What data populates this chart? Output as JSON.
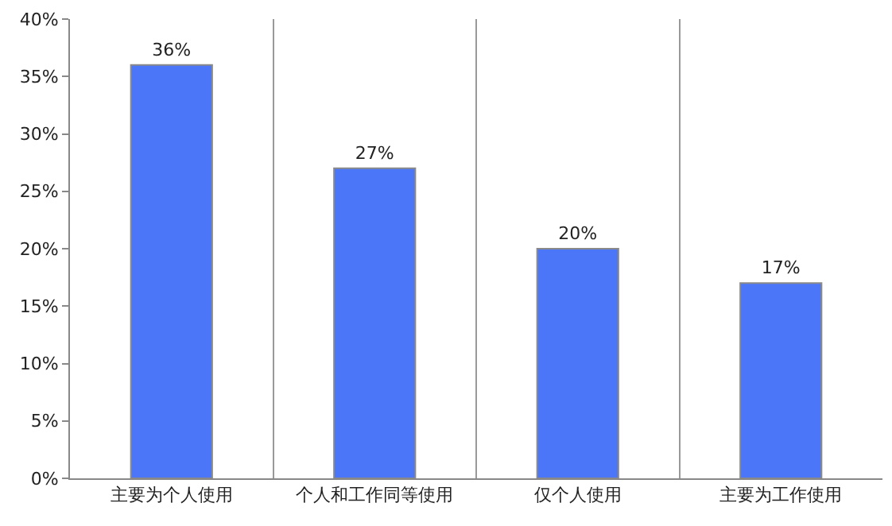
{
  "chart_data": {
    "type": "bar",
    "categories": [
      "主要为个人使用",
      "个人和工作同等使用",
      "仅个人使用",
      "主要为工作使用"
    ],
    "values": [
      36,
      27,
      20,
      17
    ],
    "value_labels": [
      "36%",
      "27%",
      "20%",
      "17%"
    ],
    "color": "#4a76f7",
    "ylim": [
      0,
      40
    ],
    "yticks": [
      {
        "value": 0,
        "label": "0%"
      },
      {
        "value": 5,
        "label": "5%"
      },
      {
        "value": 10,
        "label": "10%"
      },
      {
        "value": 15,
        "label": "15%"
      },
      {
        "value": 20,
        "label": "20%"
      },
      {
        "value": 25,
        "label": "25%"
      },
      {
        "value": 30,
        "label": "30%"
      },
      {
        "value": 35,
        "label": "35%"
      },
      {
        "value": 40,
        "label": "40%"
      }
    ],
    "grid": "x",
    "legend": false
  }
}
